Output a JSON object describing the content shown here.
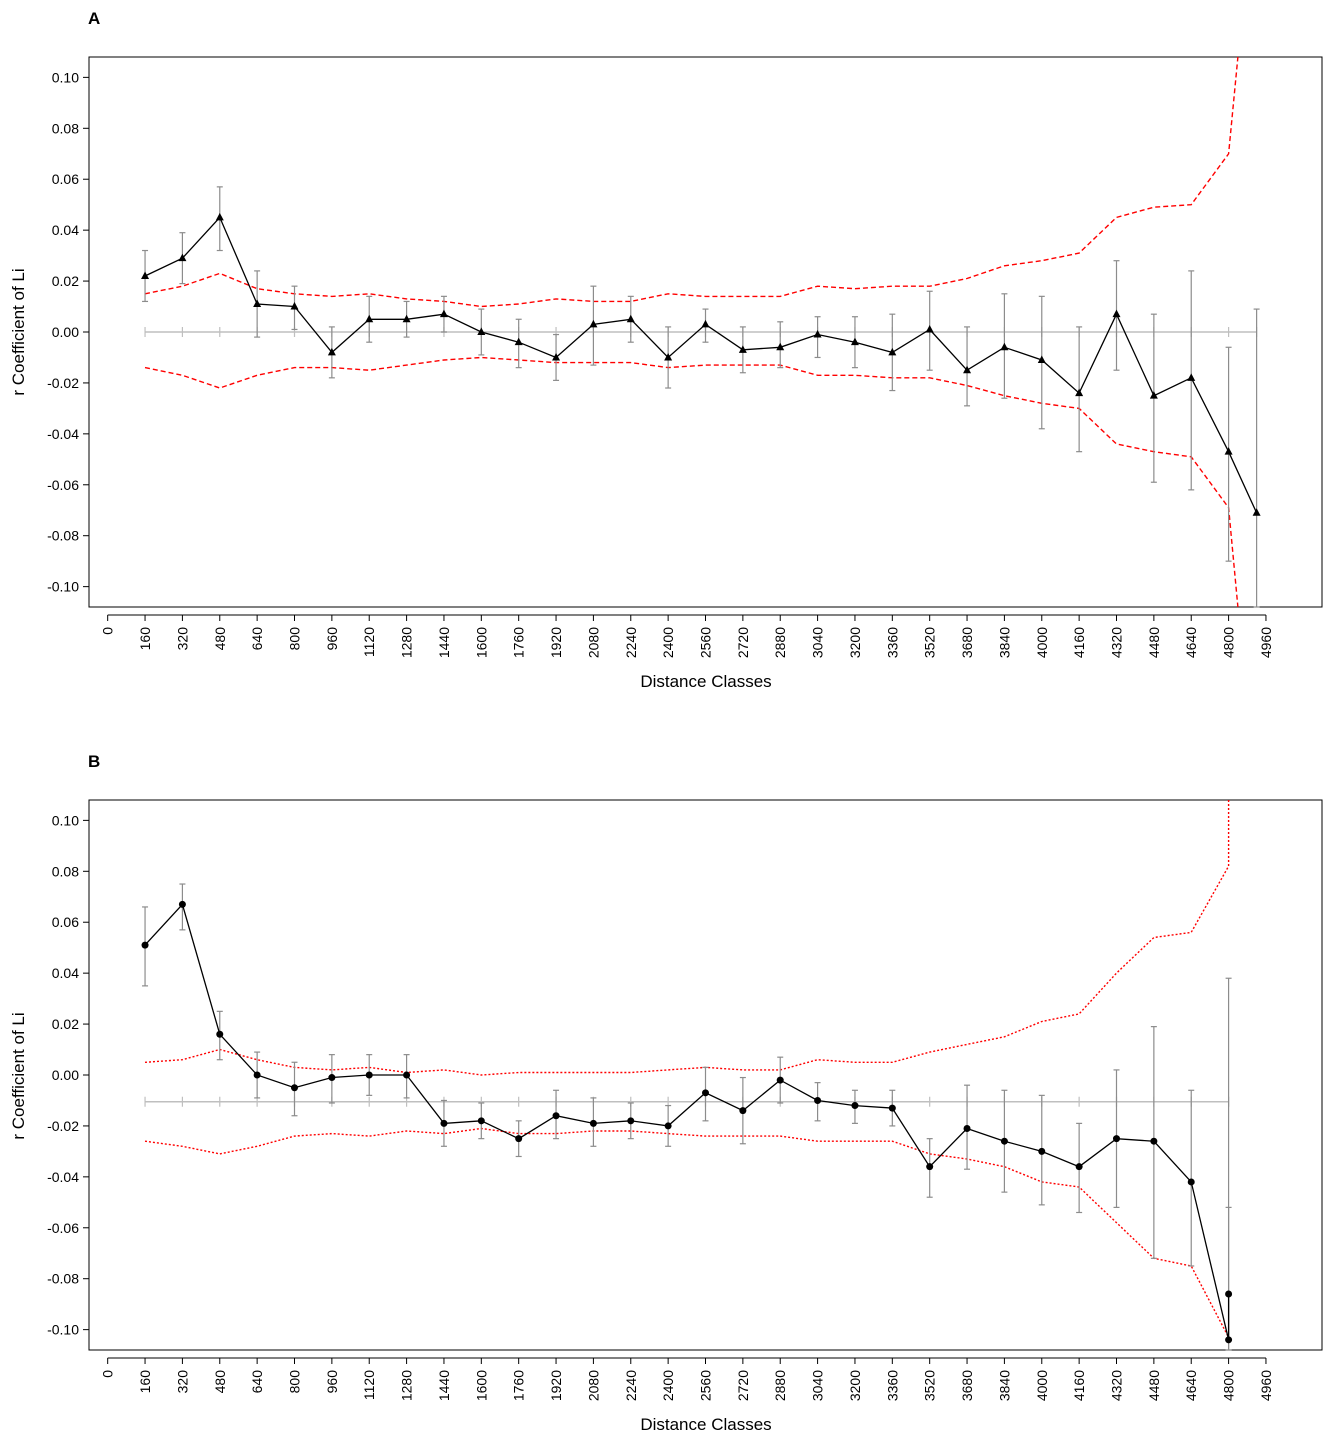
{
  "chart_data": [
    {
      "panel": "A",
      "type": "line",
      "xlabel": "Distance Classes",
      "ylabel": "r Coefficient of Li",
      "x_ticks": [
        0,
        160,
        320,
        480,
        640,
        800,
        960,
        1120,
        1280,
        1440,
        1600,
        1760,
        1920,
        2080,
        2240,
        2400,
        2560,
        2720,
        2880,
        3040,
        3200,
        3360,
        3520,
        3680,
        3840,
        4000,
        4160,
        4320,
        4480,
        4640,
        4800,
        4960
      ],
      "y_ticks": [
        0.1,
        0.08,
        0.06,
        0.04,
        0.02,
        0.0,
        -0.02,
        -0.04,
        -0.06,
        -0.08,
        -0.1
      ],
      "y_tick_labels": [
        "0.10",
        "0.08",
        "0.06",
        "0.04",
        "0.02",
        "0.00",
        "-0.02",
        "-0.04",
        "-0.06",
        "-0.08",
        "-0.10"
      ],
      "xlim": [
        -80,
        5200
      ],
      "ylim": [
        -0.108,
        0.108
      ],
      "marker": "triangle",
      "baseline": 0.0,
      "series": [
        {
          "role": "observed",
          "x": [
            160,
            320,
            480,
            640,
            800,
            960,
            1120,
            1280,
            1440,
            1600,
            1760,
            1920,
            2080,
            2240,
            2400,
            2560,
            2720,
            2880,
            3040,
            3200,
            3360,
            3520,
            3680,
            3840,
            4000,
            4160,
            4320,
            4480,
            4640,
            4800,
            4920
          ],
          "values": [
            0.022,
            0.029,
            0.045,
            0.011,
            0.01,
            -0.008,
            0.005,
            0.005,
            0.007,
            0.0,
            -0.004,
            -0.01,
            0.003,
            0.005,
            -0.01,
            0.003,
            -0.007,
            -0.006,
            -0.001,
            -0.004,
            -0.008,
            0.001,
            -0.015,
            -0.006,
            -0.011,
            -0.024,
            0.007,
            -0.025,
            -0.018,
            -0.047,
            -0.071
          ],
          "err_low": [
            0.012,
            0.019,
            0.032,
            -0.002,
            0.001,
            -0.018,
            -0.004,
            -0.002,
            0.0,
            -0.009,
            -0.014,
            -0.019,
            -0.013,
            -0.004,
            -0.022,
            -0.004,
            -0.016,
            -0.014,
            -0.01,
            -0.014,
            -0.023,
            -0.015,
            -0.029,
            -0.026,
            -0.038,
            -0.047,
            -0.015,
            -0.059,
            -0.062,
            -0.09,
            -0.108
          ],
          "err_high": [
            0.032,
            0.039,
            0.057,
            0.024,
            0.018,
            0.002,
            0.014,
            0.012,
            0.014,
            0.009,
            0.005,
            -0.001,
            0.018,
            0.014,
            0.002,
            0.009,
            0.002,
            0.004,
            0.006,
            0.006,
            0.007,
            0.016,
            0.002,
            0.015,
            0.014,
            0.002,
            0.028,
            0.007,
            0.024,
            -0.006,
            0.009
          ]
        },
        {
          "role": "upper_ci",
          "color": "#ff0000",
          "x": [
            160,
            320,
            480,
            640,
            800,
            960,
            1120,
            1280,
            1440,
            1600,
            1760,
            1920,
            2080,
            2240,
            2400,
            2560,
            2720,
            2880,
            3040,
            3200,
            3360,
            3520,
            3680,
            3840,
            4000,
            4160,
            4320,
            4480,
            4640,
            4800,
            4840
          ],
          "values": [
            0.015,
            0.018,
            0.023,
            0.017,
            0.015,
            0.014,
            0.015,
            0.013,
            0.012,
            0.01,
            0.011,
            0.013,
            0.012,
            0.012,
            0.015,
            0.014,
            0.014,
            0.014,
            0.018,
            0.017,
            0.018,
            0.018,
            0.021,
            0.026,
            0.028,
            0.031,
            0.045,
            0.049,
            0.05,
            0.07,
            0.108
          ]
        },
        {
          "role": "lower_ci",
          "color": "#ff0000",
          "x": [
            160,
            320,
            480,
            640,
            800,
            960,
            1120,
            1280,
            1440,
            1600,
            1760,
            1920,
            2080,
            2240,
            2400,
            2560,
            2720,
            2880,
            3040,
            3200,
            3360,
            3520,
            3680,
            3840,
            4000,
            4160,
            4320,
            4480,
            4640,
            4800,
            4840
          ],
          "values": [
            -0.014,
            -0.017,
            -0.022,
            -0.017,
            -0.014,
            -0.014,
            -0.015,
            -0.013,
            -0.011,
            -0.01,
            -0.011,
            -0.012,
            -0.012,
            -0.012,
            -0.014,
            -0.013,
            -0.013,
            -0.013,
            -0.017,
            -0.017,
            -0.018,
            -0.018,
            -0.021,
            -0.025,
            -0.028,
            -0.03,
            -0.044,
            -0.047,
            -0.049,
            -0.069,
            -0.108
          ]
        },
        {
          "role": "null_mean",
          "color": "#bfbfbf",
          "x": [
            160,
            320,
            480,
            640,
            800,
            960,
            1120,
            1280,
            1440,
            1600,
            1760,
            1920,
            2080,
            2240,
            2400,
            2560,
            2720,
            2880,
            3040,
            3200,
            3360,
            3520,
            3680,
            3840,
            4000,
            4160,
            4320,
            4480,
            4640,
            4800,
            4920
          ],
          "values": [
            0.0,
            0.0,
            0.0,
            0.0,
            0.0,
            0.0,
            0.0,
            0.0,
            0.0,
            0.0,
            0.0,
            0.0,
            0.0,
            0.0,
            0.0,
            0.0,
            0.0,
            0.0,
            0.0,
            0.0,
            0.0,
            0.0,
            0.0,
            0.0,
            0.0,
            0.0,
            0.0,
            0.0,
            0.0,
            0.0,
            0.0
          ]
        }
      ]
    },
    {
      "panel": "B",
      "type": "line",
      "xlabel": "Distance Classes",
      "ylabel": "r Coefficient of Li",
      "x_ticks": [
        0,
        160,
        320,
        480,
        640,
        800,
        960,
        1120,
        1280,
        1440,
        1600,
        1760,
        1920,
        2080,
        2240,
        2400,
        2560,
        2720,
        2880,
        3040,
        3200,
        3360,
        3520,
        3680,
        3840,
        4000,
        4160,
        4320,
        4480,
        4640,
        4800,
        4960
      ],
      "y_ticks": [
        0.1,
        0.08,
        0.06,
        0.04,
        0.02,
        0.0,
        -0.02,
        -0.04,
        -0.06,
        -0.08,
        -0.1
      ],
      "y_tick_labels": [
        "0.10",
        "0.08",
        "0.06",
        "0.04",
        "0.02",
        "0.00",
        "-0.02",
        "-0.04",
        "-0.06",
        "-0.08",
        "-0.10"
      ],
      "xlim": [
        -80,
        5200
      ],
      "ylim": [
        -0.108,
        0.108
      ],
      "marker": "circle",
      "baseline": -0.0105,
      "series": [
        {
          "role": "observed",
          "x": [
            160,
            320,
            480,
            640,
            800,
            960,
            1120,
            1280,
            1440,
            1600,
            1760,
            1920,
            2080,
            2240,
            2400,
            2560,
            2720,
            2880,
            3040,
            3200,
            3360,
            3520,
            3680,
            3840,
            4000,
            4160,
            4320,
            4480,
            4640,
            4800,
            4800
          ],
          "values": [
            0.051,
            0.067,
            0.016,
            0.0,
            -0.005,
            -0.001,
            0.0,
            0.0,
            -0.019,
            -0.018,
            -0.025,
            -0.016,
            -0.019,
            -0.018,
            -0.02,
            -0.007,
            -0.014,
            -0.002,
            -0.01,
            -0.012,
            -0.013,
            -0.036,
            -0.021,
            -0.026,
            -0.03,
            -0.036,
            -0.025,
            -0.026,
            -0.042,
            -0.104,
            -0.086
          ],
          "err_low": [
            0.035,
            0.057,
            0.006,
            -0.009,
            -0.016,
            -0.011,
            -0.008,
            -0.009,
            -0.028,
            -0.025,
            -0.032,
            -0.025,
            -0.028,
            -0.025,
            -0.028,
            -0.018,
            -0.027,
            -0.011,
            -0.018,
            -0.019,
            -0.02,
            -0.048,
            -0.037,
            -0.046,
            -0.051,
            -0.054,
            -0.052,
            -0.072,
            -0.075,
            -0.108,
            -0.108
          ],
          "err_high": [
            0.066,
            0.075,
            0.025,
            0.009,
            0.005,
            0.008,
            0.008,
            0.008,
            -0.01,
            -0.011,
            -0.018,
            -0.006,
            -0.009,
            -0.011,
            -0.012,
            0.003,
            -0.001,
            0.007,
            -0.003,
            -0.006,
            -0.006,
            -0.025,
            -0.004,
            -0.006,
            -0.008,
            -0.019,
            0.002,
            0.019,
            -0.006,
            -0.052,
            0.038
          ]
        },
        {
          "role": "upper_ci",
          "color": "#ff0000",
          "x": [
            160,
            320,
            480,
            640,
            800,
            960,
            1120,
            1280,
            1440,
            1600,
            1760,
            1920,
            2080,
            2240,
            2400,
            2560,
            2720,
            2880,
            3040,
            3200,
            3360,
            3520,
            3680,
            3840,
            4000,
            4160,
            4320,
            4480,
            4640,
            4800,
            4800
          ],
          "values": [
            0.005,
            0.006,
            0.01,
            0.006,
            0.003,
            0.002,
            0.003,
            0.001,
            0.002,
            0.0,
            0.001,
            0.001,
            0.001,
            0.001,
            0.002,
            0.003,
            0.002,
            0.002,
            0.006,
            0.005,
            0.005,
            0.009,
            0.012,
            0.015,
            0.021,
            0.024,
            0.04,
            0.054,
            0.056,
            0.082,
            0.108
          ]
        },
        {
          "role": "lower_ci",
          "color": "#ff0000",
          "x": [
            160,
            320,
            480,
            640,
            800,
            960,
            1120,
            1280,
            1440,
            1600,
            1760,
            1920,
            2080,
            2240,
            2400,
            2560,
            2720,
            2880,
            3040,
            3200,
            3360,
            3520,
            3680,
            3840,
            4000,
            4160,
            4320,
            4480,
            4640,
            4800
          ],
          "values": [
            -0.026,
            -0.028,
            -0.031,
            -0.028,
            -0.024,
            -0.023,
            -0.024,
            -0.022,
            -0.023,
            -0.021,
            -0.023,
            -0.023,
            -0.022,
            -0.022,
            -0.023,
            -0.024,
            -0.024,
            -0.024,
            -0.026,
            -0.026,
            -0.026,
            -0.031,
            -0.033,
            -0.036,
            -0.042,
            -0.044,
            -0.058,
            -0.072,
            -0.075,
            -0.103
          ]
        },
        {
          "role": "null_mean",
          "color": "#bfbfbf",
          "x": [
            160,
            320,
            480,
            640,
            800,
            960,
            1120,
            1280,
            1440,
            1600,
            1760,
            1920,
            2080,
            2240,
            2400,
            2560,
            2720,
            2880,
            3040,
            3200,
            3360,
            3520,
            3680,
            3840,
            4000,
            4160,
            4320,
            4480,
            4640,
            4800,
            4800
          ],
          "values": [
            -0.0105,
            -0.0105,
            -0.0105,
            -0.0105,
            -0.0105,
            -0.0105,
            -0.0105,
            -0.0105,
            -0.0105,
            -0.0105,
            -0.0105,
            -0.0105,
            -0.0105,
            -0.0105,
            -0.0105,
            -0.0105,
            -0.0105,
            -0.0105,
            -0.0105,
            -0.0105,
            -0.0105,
            -0.0105,
            -0.0105,
            -0.0105,
            -0.0105,
            -0.0105,
            -0.0105,
            -0.0105,
            -0.0105,
            -0.0105,
            -0.0105
          ]
        }
      ]
    }
  ]
}
